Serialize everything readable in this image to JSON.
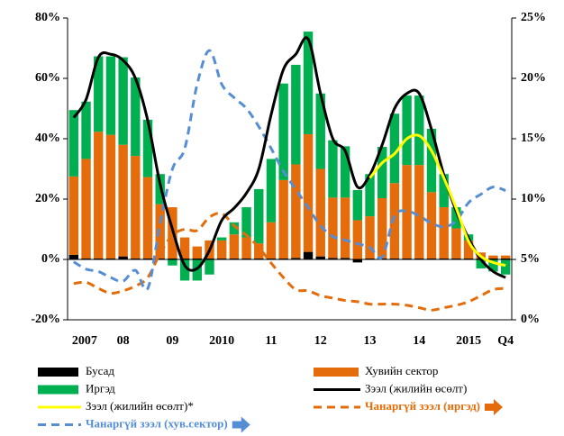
{
  "chart_data": {
    "type": "combo",
    "categories": [
      "2007",
      null,
      null,
      null,
      "08",
      null,
      null,
      null,
      "09",
      null,
      null,
      null,
      "2010",
      null,
      null,
      null,
      "11",
      null,
      null,
      null,
      "12",
      null,
      null,
      null,
      "13",
      null,
      null,
      null,
      "14",
      null,
      null,
      null,
      "2015",
      null,
      null,
      "Q4"
    ],
    "ylim": [
      -20,
      80
    ],
    "yticks": [
      {
        "value": -20,
        "label": "-20%"
      },
      {
        "value": 0,
        "label": "0%"
      },
      {
        "value": 20,
        "label": "20%"
      },
      {
        "value": 40,
        "label": "40%"
      },
      {
        "value": 60,
        "label": "60%"
      },
      {
        "value": 80,
        "label": "80%"
      }
    ],
    "y2lim": [
      0,
      25
    ],
    "y2ticks": [
      {
        "value": 0,
        "label": "0%"
      },
      {
        "value": 5,
        "label": "5%"
      },
      {
        "value": 10,
        "label": "10%"
      },
      {
        "value": 15,
        "label": "15%"
      },
      {
        "value": 20,
        "label": "20%"
      },
      {
        "value": 25,
        "label": "25%"
      }
    ],
    "legend": "bottom",
    "series": [
      {
        "name": "Бусад",
        "kind": "bar",
        "color": "#000000",
        "values": [
          1.5,
          0.3,
          0.3,
          0.3,
          1,
          0.3,
          0.3,
          0.3,
          0.3,
          0.3,
          0.3,
          0.3,
          0.3,
          0.3,
          0.3,
          0.3,
          0.3,
          0.3,
          0.5,
          2.5,
          1,
          0.5,
          0.5,
          -1,
          0.3,
          0.3,
          0.3,
          0.3,
          0.3,
          0.3,
          0.3,
          0.3,
          0.3,
          0.3,
          0.3,
          0.3
        ]
      },
      {
        "name": "Хувийн сектор",
        "kind": "bar",
        "color": "#e46c0a",
        "values": [
          26,
          33,
          42,
          41,
          37,
          34,
          27,
          18,
          17,
          7,
          4,
          6,
          6,
          8,
          7,
          5,
          12,
          26,
          31,
          39,
          29,
          20,
          20,
          13,
          14,
          20,
          25,
          31,
          31,
          22,
          17,
          10,
          6,
          2,
          1,
          1
        ]
      },
      {
        "name": "Иргэд",
        "kind": "bar",
        "color": "#00b050",
        "values": [
          22,
          19,
          25,
          26,
          29,
          26,
          19,
          10,
          -2,
          -7,
          -7,
          -5,
          1,
          4,
          10,
          18,
          21,
          32,
          33,
          34,
          25,
          19,
          17,
          10,
          14,
          17,
          23,
          23,
          23,
          21,
          11,
          7,
          2,
          -3,
          -4,
          -5
        ]
      },
      {
        "name": "Зээл (жилийн өсөлт)",
        "kind": "line",
        "color": "#000000",
        "values": [
          47,
          53,
          67,
          68,
          66,
          60,
          46,
          25,
          10,
          -2,
          -3,
          3,
          13,
          17,
          22,
          30,
          48,
          63,
          68,
          73,
          55,
          40,
          36,
          24,
          28,
          38,
          50,
          55,
          55,
          43,
          28,
          16,
          7,
          0,
          -4,
          -6
        ]
      },
      {
        "name": "Зээл (жилийн өсөлт)*",
        "kind": "line",
        "color": "#ffff00",
        "values": [
          null,
          null,
          null,
          null,
          null,
          null,
          null,
          null,
          null,
          null,
          null,
          null,
          null,
          null,
          null,
          null,
          null,
          null,
          null,
          null,
          null,
          null,
          null,
          null,
          27,
          32,
          35,
          40,
          41,
          36,
          27,
          17,
          6,
          1,
          -1,
          -2
        ]
      },
      {
        "name": "Чанаргүй зээл (иргэд)",
        "kind": "line",
        "dashed": true,
        "axis": "y2",
        "color": "#e46c0a",
        "values": [
          3.0,
          3.1,
          2.6,
          2.2,
          2.4,
          2.8,
          3.5,
          5.5,
          7.0,
          7.5,
          7.4,
          8.5,
          8.8,
          7.8,
          7.0,
          6.0,
          4.7,
          3.5,
          2.5,
          2.4,
          2.0,
          1.8,
          1.6,
          1.5,
          1.3,
          1.3,
          1.3,
          1.2,
          1.0,
          0.8,
          1.0,
          1.2,
          1.5,
          2.0,
          2.5,
          2.6
        ]
      },
      {
        "name": "Чанаргүй зээл (хув.сектор)",
        "kind": "line",
        "dashed": true,
        "axis": "y2",
        "color": "#558ed5",
        "values": [
          4.8,
          4.2,
          4.0,
          3.5,
          3.2,
          4.1,
          2.6,
          8.0,
          12.5,
          14.2,
          19.5,
          22.3,
          19.5,
          18.4,
          17.5,
          16.0,
          14.2,
          12.3,
          10.8,
          9.3,
          7.8,
          6.9,
          6.6,
          6.3,
          6.0,
          5.2,
          8.6,
          9.0,
          8.6,
          8.0,
          7.7,
          8.2,
          9.7,
          10.4,
          11.0,
          10.7
        ]
      }
    ]
  }
}
